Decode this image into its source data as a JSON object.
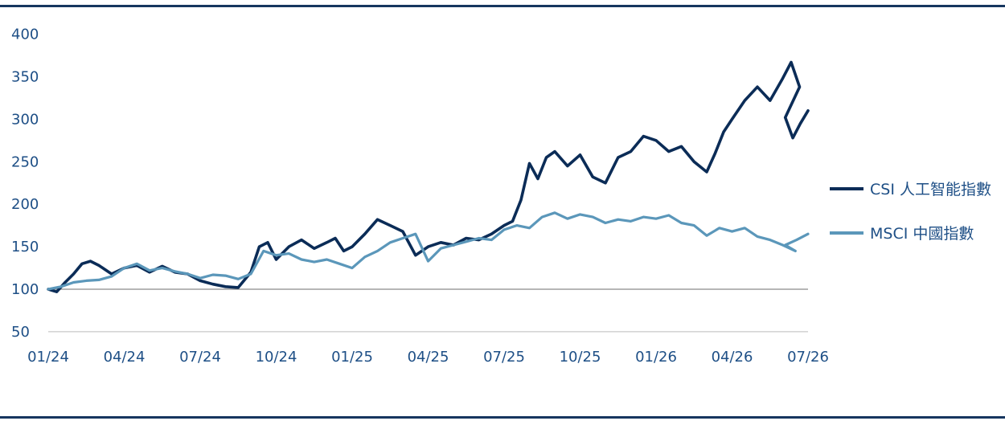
{
  "colors": {
    "navy": "#0b2c57",
    "steel": "#5b97ba",
    "axis_text": "#1e4f86",
    "rule": "#16365f",
    "gridline": "#c8c8c8",
    "baseline": "#8a8a8a"
  },
  "chart_data": {
    "type": "line",
    "title": "",
    "xlabel": "",
    "ylabel": "",
    "ylim": [
      50,
      400
    ],
    "yticks": [
      "400",
      "350",
      "300",
      "250",
      "200",
      "150",
      "100",
      "50"
    ],
    "xticks": [
      "01/24",
      "04/24",
      "07/24",
      "10/24",
      "01/25",
      "04/25",
      "07/25",
      "10/25",
      "01/26",
      "04/26",
      "07/26"
    ],
    "x_range": [
      "01/24",
      "07/26"
    ],
    "reference_line": 100,
    "grid": false,
    "legend_position": "right",
    "series": [
      {
        "name": "CSI 人工智能指數",
        "color": "#0b2c57",
        "points": [
          [
            "01/24",
            100
          ],
          [
            "01/24",
            97
          ],
          [
            "01/24",
            108
          ],
          [
            "02/24",
            118
          ],
          [
            "02/24",
            130
          ],
          [
            "02/24",
            133
          ],
          [
            "03/24",
            128
          ],
          [
            "03/24",
            118
          ],
          [
            "04/24",
            125
          ],
          [
            "04/24",
            128
          ],
          [
            "05/24",
            120
          ],
          [
            "05/24",
            127
          ],
          [
            "06/24",
            120
          ],
          [
            "06/24",
            118
          ],
          [
            "07/24",
            110
          ],
          [
            "07/24",
            106
          ],
          [
            "08/24",
            103
          ],
          [
            "08/24",
            102
          ],
          [
            "09/24",
            120
          ],
          [
            "09/24",
            150
          ],
          [
            "09/24",
            155
          ],
          [
            "10/24",
            135
          ],
          [
            "10/24",
            150
          ],
          [
            "11/24",
            158
          ],
          [
            "11/24",
            148
          ],
          [
            "12/24",
            155
          ],
          [
            "12/24",
            160
          ],
          [
            "12/24",
            145
          ],
          [
            "01/25",
            150
          ],
          [
            "01/25",
            165
          ],
          [
            "02/25",
            182
          ],
          [
            "02/25",
            175
          ],
          [
            "03/25",
            168
          ],
          [
            "03/25",
            140
          ],
          [
            "04/25",
            150
          ],
          [
            "04/25",
            155
          ],
          [
            "05/25",
            152
          ],
          [
            "05/25",
            160
          ],
          [
            "06/25",
            158
          ],
          [
            "06/25",
            165
          ],
          [
            "07/25",
            175
          ],
          [
            "07/25",
            180
          ],
          [
            "07/25",
            205
          ],
          [
            "08/25",
            248
          ],
          [
            "08/25",
            230
          ],
          [
            "08/25",
            255
          ],
          [
            "09/25",
            262
          ],
          [
            "09/25",
            245
          ],
          [
            "10/25",
            258
          ],
          [
            "10/25",
            232
          ],
          [
            "11/25",
            225
          ],
          [
            "11/25",
            255
          ],
          [
            "12/25",
            262
          ],
          [
            "12/25",
            280
          ],
          [
            "01/26",
            275
          ],
          [
            "01/26",
            262
          ],
          [
            "02/26",
            268
          ],
          [
            "02/26",
            250
          ],
          [
            "03/26",
            238
          ],
          [
            "03/26",
            260
          ],
          [
            "03/26",
            285
          ],
          [
            "04/26",
            300
          ],
          [
            "04/26",
            322
          ],
          [
            "05/26",
            338
          ],
          [
            "05/26",
            322
          ],
          [
            "06/26",
            348
          ],
          [
            "06/26",
            367
          ],
          [
            "06/26",
            338
          ],
          [
            "07/26",
            302
          ],
          [
            "07/26",
            278
          ],
          [
            "07/26",
            295
          ],
          [
            "07/26",
            310
          ]
        ]
      },
      {
        "name": "MSCI 中國指數",
        "color": "#5b97ba",
        "points": [
          [
            "01/24",
            100
          ],
          [
            "01/24",
            103
          ],
          [
            "02/24",
            108
          ],
          [
            "02/24",
            110
          ],
          [
            "03/24",
            111
          ],
          [
            "03/24",
            115
          ],
          [
            "04/24",
            125
          ],
          [
            "04/24",
            130
          ],
          [
            "05/24",
            122
          ],
          [
            "05/24",
            125
          ],
          [
            "06/24",
            121
          ],
          [
            "06/24",
            118
          ],
          [
            "07/24",
            113
          ],
          [
            "07/24",
            117
          ],
          [
            "08/24",
            116
          ],
          [
            "08/24",
            112
          ],
          [
            "09/24",
            118
          ],
          [
            "09/24",
            145
          ],
          [
            "10/24",
            140
          ],
          [
            "10/24",
            142
          ],
          [
            "11/24",
            135
          ],
          [
            "11/24",
            132
          ],
          [
            "12/24",
            135
          ],
          [
            "12/24",
            130
          ],
          [
            "01/25",
            125
          ],
          [
            "01/25",
            138
          ],
          [
            "02/25",
            145
          ],
          [
            "02/25",
            155
          ],
          [
            "03/25",
            160
          ],
          [
            "03/25",
            165
          ],
          [
            "04/25",
            133
          ],
          [
            "04/25",
            148
          ],
          [
            "05/25",
            152
          ],
          [
            "05/25",
            156
          ],
          [
            "06/25",
            160
          ],
          [
            "06/25",
            158
          ],
          [
            "07/25",
            170
          ],
          [
            "07/25",
            175
          ],
          [
            "08/25",
            172
          ],
          [
            "08/25",
            185
          ],
          [
            "09/25",
            190
          ],
          [
            "09/25",
            183
          ],
          [
            "10/25",
            188
          ],
          [
            "10/25",
            185
          ],
          [
            "11/25",
            178
          ],
          [
            "11/25",
            182
          ],
          [
            "12/25",
            180
          ],
          [
            "12/25",
            185
          ],
          [
            "01/26",
            183
          ],
          [
            "01/26",
            187
          ],
          [
            "02/26",
            178
          ],
          [
            "02/26",
            175
          ],
          [
            "03/26",
            163
          ],
          [
            "03/26",
            172
          ],
          [
            "04/26",
            168
          ],
          [
            "04/26",
            172
          ],
          [
            "05/26",
            162
          ],
          [
            "05/26",
            158
          ],
          [
            "06/26",
            152
          ],
          [
            "06/26",
            145
          ],
          [
            "07/26",
            152
          ],
          [
            "07/26",
            158
          ],
          [
            "07/26",
            165
          ]
        ]
      }
    ]
  }
}
